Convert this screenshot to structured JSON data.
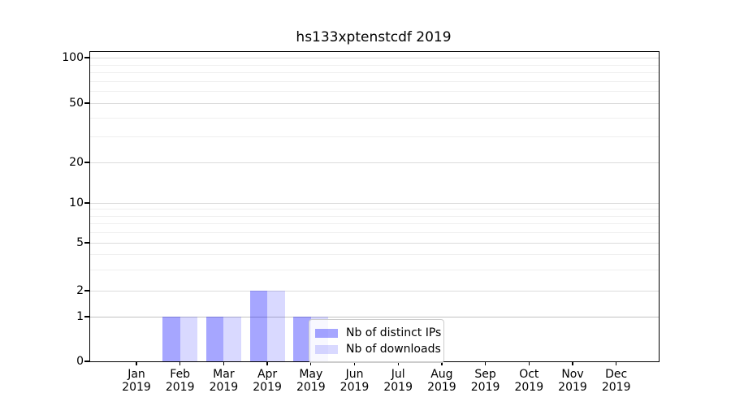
{
  "chart_data": {
    "type": "bar",
    "title": "hs133xptenstcdf 2019",
    "categories": [
      "Jan 2019",
      "Feb 2019",
      "Mar 2019",
      "Apr 2019",
      "May 2019",
      "Jun 2019",
      "Jul 2019",
      "Aug 2019",
      "Sep 2019",
      "Oct 2019",
      "Nov 2019",
      "Dec 2019"
    ],
    "series": [
      {
        "name": "Nb of distinct IPs",
        "color": "rgba(0,0,255,0.35)",
        "values": [
          0,
          1,
          1,
          2,
          1,
          0,
          0,
          0,
          0,
          0,
          0,
          0
        ]
      },
      {
        "name": "Nb of downloads",
        "color": "rgba(0,0,255,0.15)",
        "values": [
          0,
          1,
          1,
          2,
          1,
          0,
          0,
          0,
          0,
          0,
          0,
          0
        ]
      }
    ],
    "xlabel": "",
    "ylabel": "",
    "yscale": "symlog",
    "y_major_ticks": [
      100,
      50,
      20,
      10,
      5,
      2,
      1,
      0
    ],
    "y_minor_ticks": [
      3,
      4,
      6,
      7,
      8,
      9,
      30,
      40,
      60,
      70,
      80,
      90
    ],
    "ylim": [
      0,
      110
    ],
    "grid": true,
    "legend_position": "lower-right-inside"
  },
  "x_tick_labels": [
    {
      "month": "Jan",
      "year": "2019"
    },
    {
      "month": "Feb",
      "year": "2019"
    },
    {
      "month": "Mar",
      "year": "2019"
    },
    {
      "month": "Apr",
      "year": "2019"
    },
    {
      "month": "May",
      "year": "2019"
    },
    {
      "month": "Jun",
      "year": "2019"
    },
    {
      "month": "Jul",
      "year": "2019"
    },
    {
      "month": "Aug",
      "year": "2019"
    },
    {
      "month": "Sep",
      "year": "2019"
    },
    {
      "month": "Oct",
      "year": "2019"
    },
    {
      "month": "Nov",
      "year": "2019"
    },
    {
      "month": "Dec",
      "year": "2019"
    }
  ],
  "colors": {
    "bar_distinct_ips": "rgba(0,0,255,0.35)",
    "bar_downloads": "rgba(0,0,255,0.15)",
    "grid_major": "#dcdcdc",
    "grid_minor": "#efefef",
    "grid_unit_line": "#c2c2c2",
    "axis": "#000000",
    "legend_border": "#cccccc"
  }
}
